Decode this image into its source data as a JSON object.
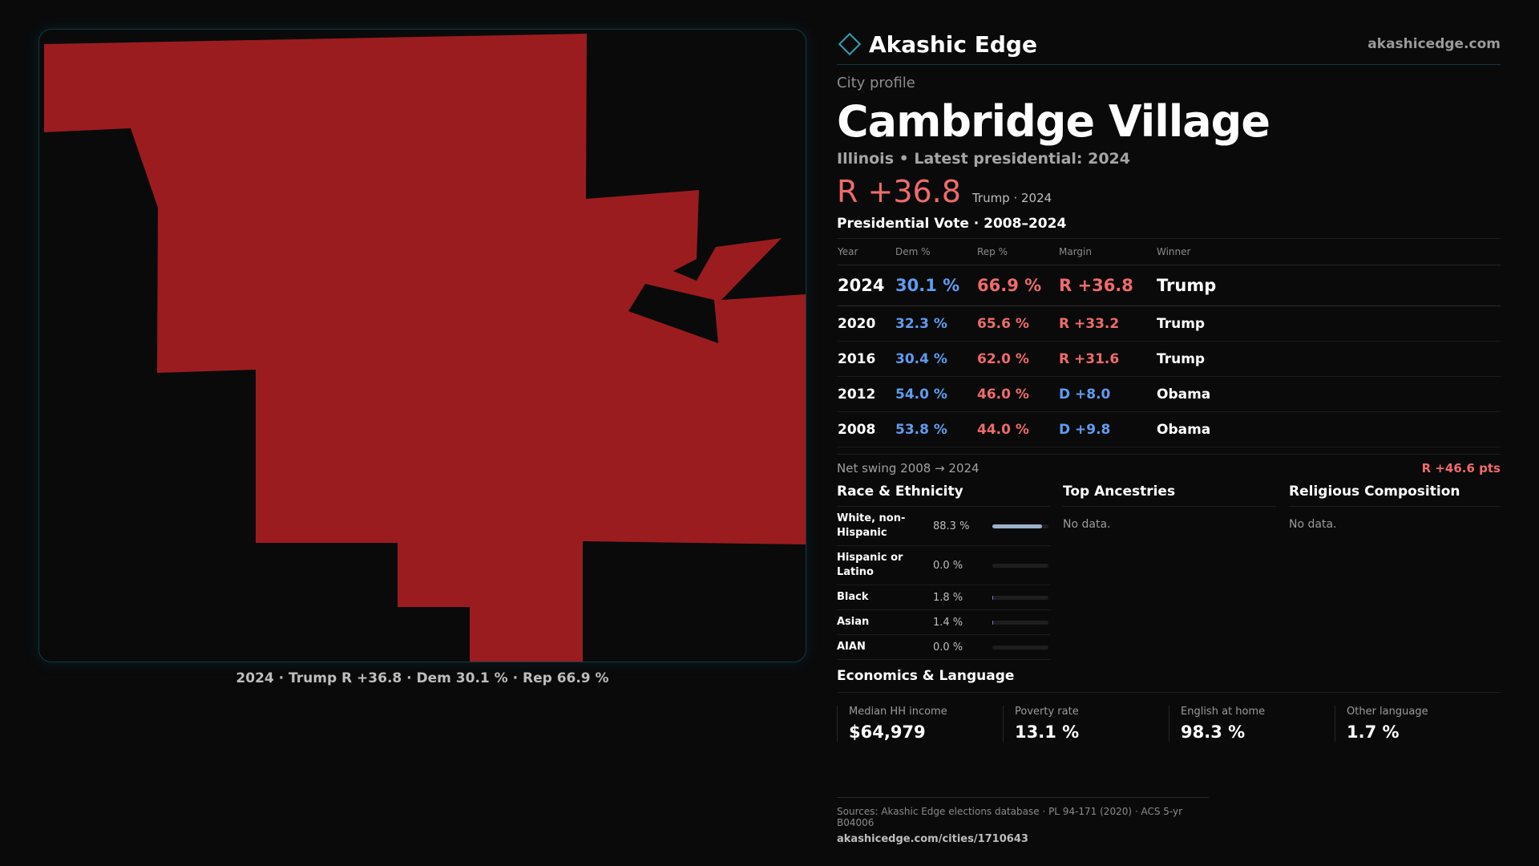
{
  "brand": {
    "name": "Akashic Edge",
    "url": "akashicedge.com",
    "icon": "diamond-icon"
  },
  "eyebrow": "City profile",
  "city": "Cambridge Village",
  "subtitle": "Illinois • Latest presidential: 2024",
  "headline": {
    "margin": "R +36.8",
    "meta": "Trump · 2024"
  },
  "vote_section_title": "Presidential Vote · 2008–2024",
  "vote_table": {
    "headers": [
      "Year",
      "Dem %",
      "Rep %",
      "Margin",
      "Winner"
    ],
    "rows": [
      {
        "year": "2024",
        "dem": "30.1 %",
        "rep": "66.9 %",
        "margin": "R +36.8",
        "winner": "Trump",
        "party": "R"
      },
      {
        "year": "2020",
        "dem": "32.3 %",
        "rep": "65.6 %",
        "margin": "R +33.2",
        "winner": "Trump",
        "party": "R"
      },
      {
        "year": "2016",
        "dem": "30.4 %",
        "rep": "62.0 %",
        "margin": "R +31.6",
        "winner": "Trump",
        "party": "R"
      },
      {
        "year": "2012",
        "dem": "54.0 %",
        "rep": "46.0 %",
        "margin": "D +8.0",
        "winner": "Obama",
        "party": "D"
      },
      {
        "year": "2008",
        "dem": "53.8 %",
        "rep": "44.0 %",
        "margin": "D +9.8",
        "winner": "Obama",
        "party": "D"
      }
    ]
  },
  "swing": {
    "label": "Net swing 2008 → 2024",
    "value": "R +46.6 pts"
  },
  "race": {
    "title": "Race & Ethnicity",
    "rows": [
      {
        "label": "White, non-Hispanic",
        "value": "88.3 %",
        "pct": 88.3
      },
      {
        "label": "Hispanic or Latino",
        "value": "0.0 %",
        "pct": 0.0
      },
      {
        "label": "Black",
        "value": "1.8 %",
        "pct": 1.8
      },
      {
        "label": "Asian",
        "value": "1.4 %",
        "pct": 1.4
      },
      {
        "label": "AIAN",
        "value": "0.0 %",
        "pct": 0.0
      }
    ]
  },
  "ancestries": {
    "title": "Top Ancestries",
    "empty": "No data."
  },
  "religion": {
    "title": "Religious Composition",
    "empty": "No data."
  },
  "economics": {
    "title": "Economics & Language",
    "cells": [
      {
        "label": "Median HH income",
        "value": "$64,979"
      },
      {
        "label": "Poverty rate",
        "value": "13.1 %"
      },
      {
        "label": "English at home",
        "value": "98.3 %"
      },
      {
        "label": "Other language",
        "value": "1.7 %"
      }
    ]
  },
  "map_caption": "2024 · Trump R +36.8 · Dem 30.1 % · Rep 66.9 %",
  "sources": {
    "line": "Sources: Akashic Edge elections database · PL 94-171 (2020) · ACS 5-yr B04006",
    "url": "akashicedge.com/cities/1710643"
  },
  "colors": {
    "republican": "#9b1c1f",
    "rep_text": "#ee6b6b",
    "dem_text": "#5f9cf0",
    "accent": "#2aa6b5"
  }
}
